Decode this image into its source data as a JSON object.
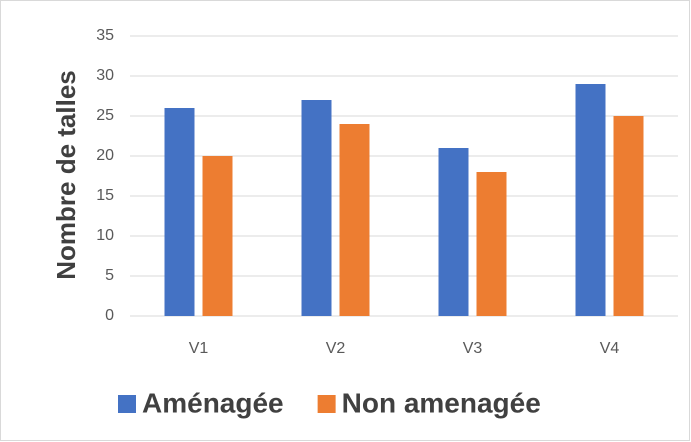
{
  "chart_data": {
    "type": "bar",
    "ylabel": "Nombre de talles",
    "categories": [
      "V1",
      "V2",
      "V3",
      "V4"
    ],
    "series": [
      {
        "name": "Aménagée",
        "color": "#4472c4",
        "values": [
          26,
          27,
          21,
          29
        ]
      },
      {
        "name": "Non amenagée",
        "color": "#ed7d31",
        "values": [
          20,
          24,
          18,
          25
        ]
      }
    ],
    "ylim": [
      0,
      35
    ],
    "yticks": [
      0,
      5,
      10,
      15,
      20,
      25,
      30,
      35
    ],
    "grid": true,
    "legend": "bottom"
  }
}
